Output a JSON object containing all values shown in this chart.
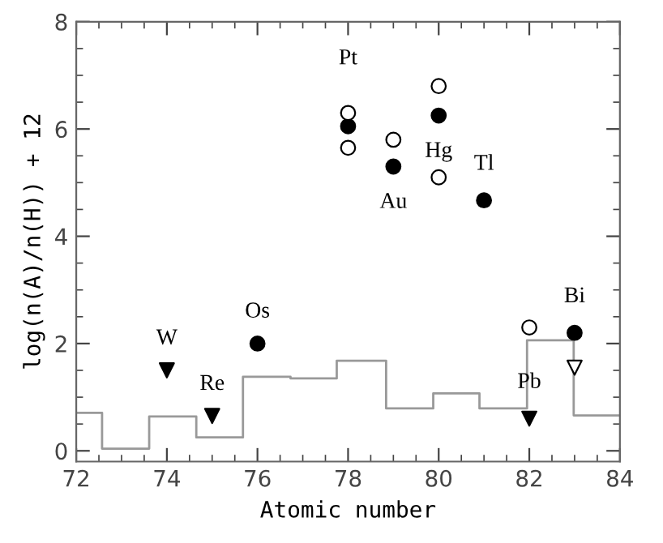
{
  "chart_data": {
    "type": "scatter",
    "xlabel": "Atomic number",
    "ylabel": "log(n(A)/n(H)) + 12",
    "xlim": [
      72,
      84
    ],
    "ylim": [
      -0.2,
      8
    ],
    "xticks": [
      72,
      74,
      76,
      78,
      80,
      82,
      84
    ],
    "yticks": [
      0,
      2,
      4,
      6,
      8
    ],
    "series": [
      {
        "marker": "circle",
        "color": "#000000",
        "x": [
          76,
          78,
          79,
          80,
          81,
          83
        ],
        "values": [
          2.0,
          6.05,
          5.3,
          6.25,
          4.67,
          2.2
        ]
      },
      {
        "marker": "circle",
        "color": "#ffffff",
        "x": [
          78,
          78,
          79,
          80,
          80,
          82
        ],
        "values": [
          6.3,
          5.65,
          5.8,
          6.8,
          5.1,
          2.3
        ]
      },
      {
        "marker": "triangle",
        "color": "#000000",
        "x": [
          74,
          75,
          82
        ],
        "values": [
          1.5,
          0.65,
          0.6
        ]
      },
      {
        "marker": "triangle",
        "color": "#ffffff",
        "x": [
          83
        ],
        "values": [
          1.55
        ]
      },
      {
        "type": "step",
        "color": "#999999",
        "x": [
          72,
          72.57,
          73.61,
          74.65,
          75.68,
          76.73,
          77.75,
          78.84,
          79.88,
          80.9,
          81.95,
          82.98,
          84
        ],
        "values": [
          0.71,
          0.04,
          0.64,
          0.25,
          1.38,
          1.35,
          1.68,
          0.79,
          1.07,
          0.79,
          2.06,
          0.66,
          0.66
        ]
      }
    ],
    "annotations": [
      {
        "text": "W",
        "x": 74,
        "y": 1.5
      },
      {
        "text": "Re",
        "x": 75,
        "y": 0.65
      },
      {
        "text": "Os",
        "x": 76,
        "y": 2.0
      },
      {
        "text": "Pt",
        "x": 78,
        "y": 6.3
      },
      {
        "text": "Au",
        "x": 79,
        "y": 5.3
      },
      {
        "text": "Hg",
        "x": 80,
        "y": 6.25
      },
      {
        "text": "Tl",
        "x": 81,
        "y": 4.67
      },
      {
        "text": "Pb",
        "x": 82,
        "y": 0.6
      },
      {
        "text": "Bi",
        "x": 83,
        "y": 2.2
      }
    ]
  }
}
